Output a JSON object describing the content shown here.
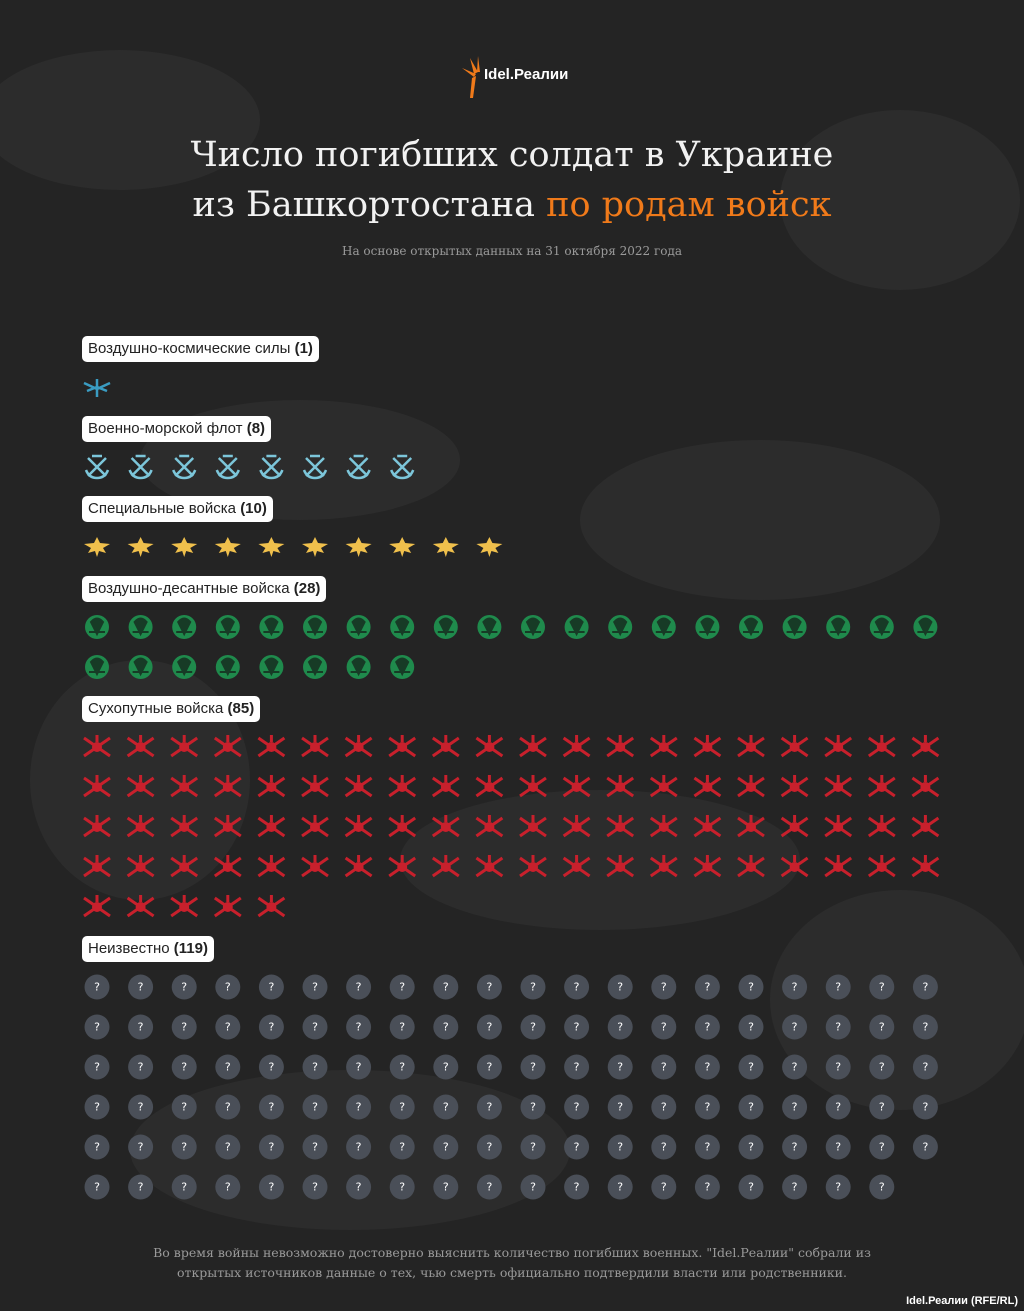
{
  "logo": "Idel.Реалии",
  "chart_data": {
    "type": "isotype",
    "title": "Число погибших солдат в Украине",
    "title_continued": "из Башкортостана",
    "title_highlight": "по родам войск",
    "subtitle": "На основе открытых данных на 31 октября 2022 года",
    "per_row": 20,
    "series": [
      {
        "name": "Воздушно-космические силы",
        "values": [
          1
        ],
        "value_labels": [
          "(1)"
        ],
        "color": "#3a9cc2"
      },
      {
        "name": "Военно-морской флот",
        "values": [
          8
        ],
        "value_labels": [
          "(8)"
        ],
        "color": "#7cc6da"
      },
      {
        "name": "Специальные войска",
        "values": [
          10
        ],
        "value_labels": [
          "(10)"
        ],
        "color": "#f0c04c"
      },
      {
        "name": "Воздушно-десантные войска",
        "values": [
          28
        ],
        "value_labels": [
          "(28)"
        ],
        "color": "#1f8a4c"
      },
      {
        "name": "Сухопутные войска",
        "values": [
          85
        ],
        "value_labels": [
          "(85)"
        ],
        "color": "#c8202c"
      },
      {
        "name": "Неизвестно",
        "values": [
          119
        ],
        "value_labels": [
          "(119)"
        ],
        "color": "#4a4f58",
        "symbol": "?"
      }
    ],
    "note": "Во время войны невозможно достоверно выяснить количество погибших военных. \"Idel.Реалии\" собрали из открытых источников данные о тех, чью смерть официально подтвердили власти или родственники."
  },
  "credit": "Idel.Реалии (RFE/RL)"
}
